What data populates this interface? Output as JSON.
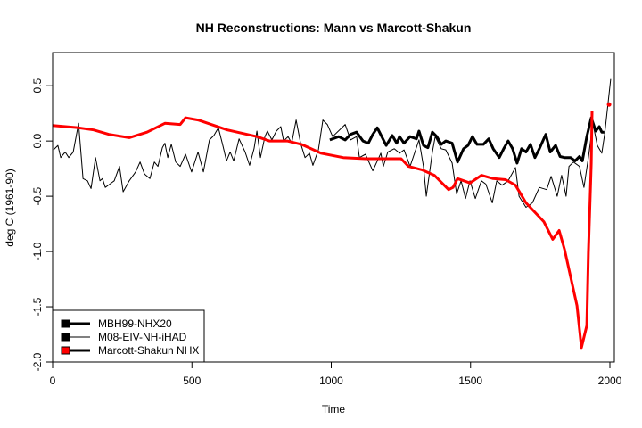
{
  "chart_data": {
    "type": "line",
    "title": "NH Reconstructions: Mann vs Marcott-Shakun",
    "xlabel": "Time",
    "ylabel": "deg C (1961-90)",
    "xlim": [
      0,
      2016
    ],
    "ylim": [
      -2.0,
      0.8
    ],
    "xticks": [
      0,
      500,
      1000,
      1500,
      2000
    ],
    "xtick_labels": [
      "0",
      "500",
      "1000",
      "1500",
      "2000"
    ],
    "yticks": [
      -2.0,
      -1.5,
      -1.0,
      -0.5,
      0.0,
      0.5
    ],
    "ytick_labels": [
      "-2.0",
      "-1.5",
      "-1.0",
      "-0.5",
      "0.0",
      "0.5"
    ],
    "grid": false,
    "legend_position": "bottom-left",
    "series": [
      {
        "name": "MBH99-NHX20",
        "color": "#000000",
        "style": "thick",
        "x": [
          995,
          1027,
          1050,
          1069,
          1091,
          1114,
          1133,
          1149,
          1165,
          1181,
          1197,
          1219,
          1235,
          1245,
          1261,
          1283,
          1306,
          1315,
          1331,
          1347,
          1363,
          1379,
          1395,
          1411,
          1434,
          1453,
          1475,
          1491,
          1507,
          1523,
          1546,
          1565,
          1581,
          1603,
          1619,
          1635,
          1651,
          1667,
          1683,
          1699,
          1715,
          1731,
          1747,
          1770,
          1786,
          1805,
          1821,
          1837,
          1859,
          1875,
          1891,
          1901,
          1917,
          1933,
          1949,
          1962,
          1971,
          1980
        ],
        "y": [
          0.01,
          0.04,
          0.01,
          0.06,
          0.08,
          0.0,
          -0.02,
          0.06,
          0.12,
          0.04,
          -0.04,
          0.05,
          -0.02,
          0.04,
          -0.02,
          0.04,
          0.02,
          0.09,
          -0.04,
          -0.06,
          0.08,
          0.04,
          -0.03,
          0.0,
          -0.02,
          -0.19,
          -0.07,
          -0.04,
          0.04,
          -0.03,
          -0.03,
          0.02,
          -0.07,
          -0.15,
          -0.07,
          0.0,
          -0.07,
          -0.2,
          -0.07,
          -0.1,
          -0.03,
          -0.15,
          -0.07,
          0.06,
          -0.1,
          -0.04,
          -0.14,
          -0.15,
          -0.15,
          -0.18,
          -0.14,
          -0.18,
          0.04,
          0.21,
          0.09,
          0.13,
          0.08,
          0.08
        ]
      },
      {
        "name": "M08-EIV-NH-iHAD",
        "color": "#000000",
        "style": "thin",
        "x": [
          3,
          19,
          29,
          45,
          58,
          74,
          93,
          109,
          125,
          138,
          154,
          170,
          179,
          189,
          205,
          221,
          240,
          253,
          275,
          298,
          314,
          330,
          349,
          365,
          378,
          394,
          403,
          413,
          426,
          442,
          458,
          477,
          499,
          522,
          541,
          563,
          579,
          595,
          611,
          624,
          637,
          650,
          669,
          691,
          707,
          723,
          733,
          746,
          762,
          771,
          787,
          803,
          819,
          829,
          845,
          858,
          874,
          890,
          906,
          922,
          934,
          954,
          970,
          986,
          1005,
          1050,
          1069,
          1091,
          1101,
          1123,
          1149,
          1178,
          1187,
          1203,
          1226,
          1245,
          1261,
          1283,
          1315,
          1331,
          1341,
          1363,
          1373,
          1395,
          1411,
          1434,
          1450,
          1466,
          1482,
          1498,
          1517,
          1539,
          1555,
          1578,
          1594,
          1613,
          1635,
          1661,
          1674,
          1699,
          1722,
          1747,
          1773,
          1789,
          1811,
          1827,
          1843,
          1853,
          1869,
          1891,
          1907,
          1923,
          1939,
          1955,
          1971,
          1981,
          2003
        ],
        "y": [
          -0.08,
          -0.04,
          -0.15,
          -0.1,
          -0.15,
          -0.1,
          0.16,
          -0.34,
          -0.36,
          -0.43,
          -0.15,
          -0.36,
          -0.34,
          -0.42,
          -0.39,
          -0.36,
          -0.23,
          -0.46,
          -0.36,
          -0.28,
          -0.19,
          -0.3,
          -0.34,
          -0.19,
          -0.23,
          -0.06,
          -0.02,
          -0.15,
          -0.03,
          -0.19,
          -0.23,
          -0.12,
          -0.28,
          -0.1,
          -0.28,
          0.01,
          0.05,
          0.12,
          -0.04,
          -0.18,
          -0.1,
          -0.18,
          0.02,
          -0.1,
          -0.22,
          -0.07,
          0.09,
          -0.15,
          0.04,
          0.09,
          0.01,
          0.09,
          0.13,
          0.0,
          0.04,
          -0.02,
          0.19,
          -0.02,
          -0.15,
          -0.11,
          -0.22,
          -0.08,
          0.19,
          0.15,
          0.04,
          0.15,
          0.01,
          0.04,
          -0.15,
          -0.12,
          -0.27,
          -0.11,
          -0.23,
          -0.1,
          -0.07,
          -0.11,
          -0.08,
          -0.23,
          0.01,
          -0.23,
          -0.5,
          -0.1,
          0.04,
          -0.07,
          -0.08,
          -0.2,
          -0.48,
          -0.36,
          -0.52,
          -0.36,
          -0.52,
          -0.36,
          -0.39,
          -0.56,
          -0.36,
          -0.4,
          -0.36,
          -0.24,
          -0.5,
          -0.6,
          -0.56,
          -0.42,
          -0.44,
          -0.32,
          -0.5,
          -0.31,
          -0.5,
          -0.23,
          -0.19,
          -0.23,
          -0.42,
          -0.15,
          0.16,
          -0.04,
          -0.11,
          0.06,
          0.56
        ]
      },
      {
        "name": "Marcott-Shakun NHX",
        "color": "#ff0000",
        "style": "thick",
        "x": [
          0,
          93,
          147,
          202,
          275,
          339,
          403,
          458,
          477,
          522,
          627,
          733,
          778,
          842,
          893,
          963,
          1043,
          1123,
          1251,
          1277,
          1325,
          1370,
          1421,
          1437,
          1453,
          1498,
          1539,
          1581,
          1626,
          1661,
          1699,
          1763,
          1795,
          1818,
          1837,
          1882,
          1898,
          1917,
          1923,
          1933,
          1936
        ],
        "y": [
          0.14,
          0.12,
          0.1,
          0.06,
          0.03,
          0.08,
          0.16,
          0.15,
          0.21,
          0.19,
          0.1,
          0.04,
          0.0,
          0.0,
          -0.03,
          -0.11,
          -0.15,
          -0.16,
          -0.16,
          -0.23,
          -0.26,
          -0.31,
          -0.44,
          -0.42,
          -0.34,
          -0.38,
          -0.31,
          -0.34,
          -0.35,
          -0.4,
          -0.56,
          -0.73,
          -0.89,
          -0.81,
          -0.98,
          -1.49,
          -1.87,
          -1.67,
          -1.01,
          -0.2,
          0.27
        ],
        "extra_point": {
          "x": 1997,
          "y": 0.33
        }
      }
    ]
  }
}
